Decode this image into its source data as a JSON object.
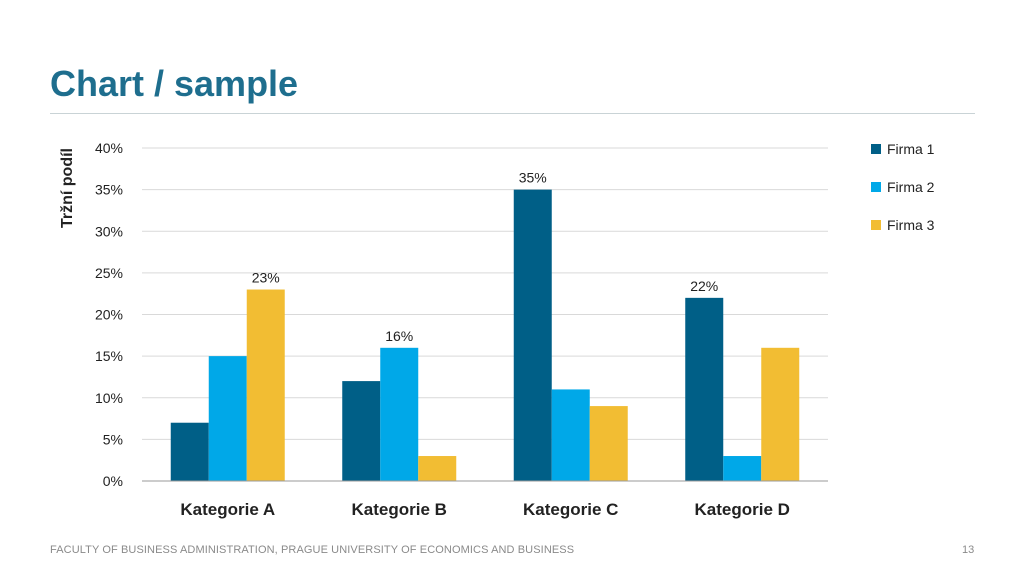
{
  "slide": {
    "title": "Chart / sample",
    "footer": "FACULTY OF BUSINESS ADMINISTRATION, PRAGUE UNIVERSITY OF ECONOMICS AND BUSINESS",
    "page_number": "13"
  },
  "chart_data": {
    "type": "bar",
    "title": "",
    "xlabel": "",
    "ylabel": "Tržní podíl",
    "ylim": [
      0,
      40
    ],
    "y_ticks": [
      0,
      5,
      10,
      15,
      20,
      25,
      30,
      35,
      40
    ],
    "y_tick_labels": [
      "0%",
      "5%",
      "10%",
      "15%",
      "20%",
      "25%",
      "30%",
      "35%",
      "40%"
    ],
    "categories": [
      "Kategorie A",
      "Kategorie B",
      "Kategorie C",
      "Kategorie D"
    ],
    "series": [
      {
        "name": "Firma 1",
        "color": "#005f87",
        "values": [
          7,
          12,
          35,
          22
        ]
      },
      {
        "name": "Firma 2",
        "color": "#00a8e8",
        "values": [
          15,
          16,
          11,
          3
        ]
      },
      {
        "name": "Firma 3",
        "color": "#f2bd33",
        "values": [
          23,
          3,
          9,
          16
        ]
      }
    ],
    "data_labels": [
      {
        "series": 2,
        "category": 0,
        "text": "23%"
      },
      {
        "series": 1,
        "category": 1,
        "text": "16%"
      },
      {
        "series": 0,
        "category": 2,
        "text": "35%"
      },
      {
        "series": 0,
        "category": 3,
        "text": "22%"
      }
    ],
    "grid": true,
    "legend_position": "right"
  }
}
